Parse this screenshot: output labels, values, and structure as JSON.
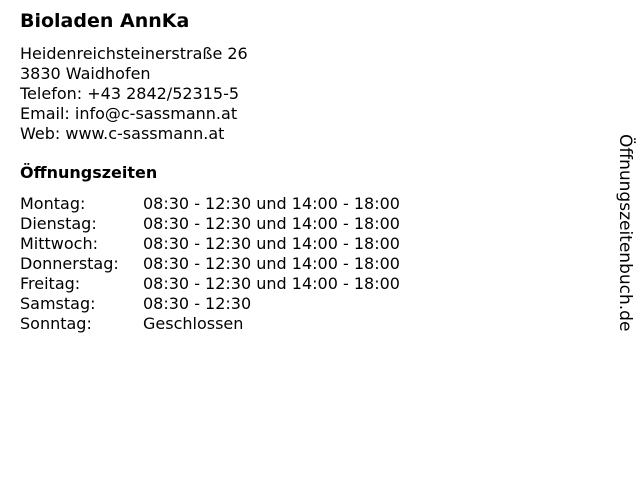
{
  "store": {
    "name": "Bioladen AnnKa",
    "address_lines": [
      "Heidenreichsteinerstraße 26",
      "3830 Waidhofen",
      "Telefon: +43 2842/52315-5",
      "Email: info@c-sassmann.at",
      "Web: www.c-sassmann.at"
    ]
  },
  "hours": {
    "heading": "Öffnungszeiten",
    "rows": [
      {
        "day": "Montag:",
        "time": "08:30 - 12:30 und 14:00 - 18:00"
      },
      {
        "day": "Dienstag:",
        "time": "08:30 - 12:30 und 14:00 - 18:00"
      },
      {
        "day": "Mittwoch:",
        "time": "08:30 - 12:30 und 14:00 - 18:00"
      },
      {
        "day": "Donnerstag:",
        "time": "08:30 - 12:30 und 14:00 - 18:00"
      },
      {
        "day": "Freitag:",
        "time": "08:30 - 12:30 und 14:00 - 18:00"
      },
      {
        "day": "Samstag:",
        "time": "08:30 - 12:30"
      },
      {
        "day": "Sonntag:",
        "time": "Geschlossen"
      }
    ]
  },
  "watermark": "Öffnungszeitenbuch.de"
}
